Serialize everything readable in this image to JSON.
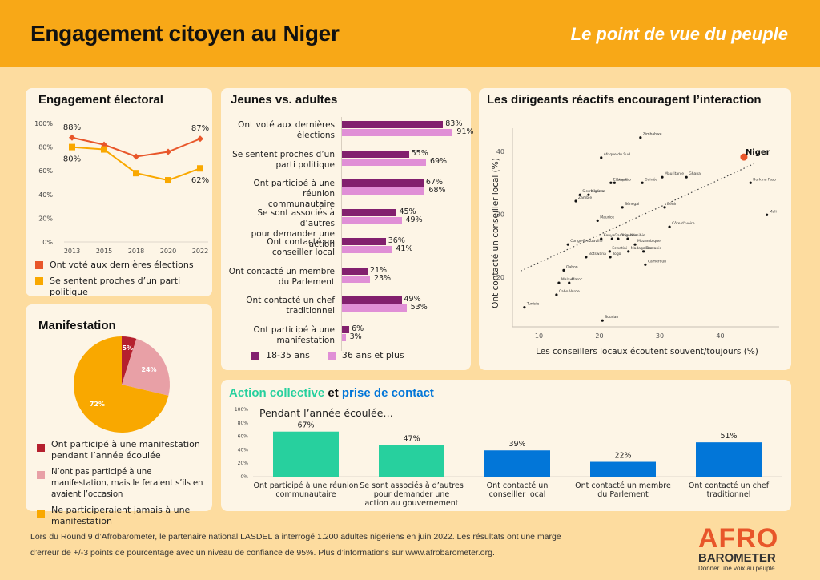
{
  "header": {
    "title": "Engagement citoyen au Niger",
    "subtitle": "Le point de vue du peuple"
  },
  "colors": {
    "header_bg": "#f8a817",
    "page_bg": "#fddc9f",
    "card_bg": "#fdf5e6",
    "orange_red": "#e8562a",
    "amber": "#f9a800",
    "dark_red": "#b5202e",
    "pink": "#e8a0a6",
    "purple": "#82206e",
    "light_purple": "#e08fd6",
    "teal": "#27d09e",
    "blue": "#0276d8"
  },
  "chart_data": [
    {
      "id": "electoral",
      "type": "line",
      "title": "Engagement électoral",
      "x": [
        "2013",
        "2015",
        "2018",
        "2020",
        "2022"
      ],
      "ylim": [
        0,
        100
      ],
      "yticks": [
        "0%",
        "20%",
        "40%",
        "60%",
        "80%",
        "100%"
      ],
      "series": [
        {
          "name": "Ont voté aux dernières élections",
          "values": [
            88,
            82,
            72,
            76,
            87
          ],
          "labels": [
            "88%",
            "",
            "",
            "",
            "87%"
          ],
          "color": "#e8562a",
          "marker": "diamond"
        },
        {
          "name": "Se sentent proches d’un parti politique",
          "values": [
            80,
            78,
            58,
            52,
            62
          ],
          "labels": [
            "80%",
            "",
            "",
            "",
            "62%"
          ],
          "color": "#f9a800",
          "marker": "square"
        }
      ],
      "legend": "bottom"
    },
    {
      "id": "manifestation",
      "type": "pie",
      "title": "Manifestation",
      "slices": [
        {
          "label": "Ont participé à une manifestation pendant l’année écoulée",
          "value": 5,
          "display": "5%",
          "color": "#b5202e"
        },
        {
          "label": "N’ont pas participé à une manifestation, mais le feraient s’ils en avaient l’occasion",
          "value": 24,
          "display": "24%",
          "color": "#e8a0a6"
        },
        {
          "label": "Ne participeraient jamais à une manifestation",
          "value": 72,
          "display": "72%",
          "color": "#f9a800"
        }
      ],
      "legend": "bottom"
    },
    {
      "id": "youth_adults",
      "type": "bar",
      "orientation": "horizontal",
      "title": "Jeunes vs. adultes",
      "categories": [
        "Ont voté aux dernières élections",
        "Se sentent proches d’un parti politique",
        "Ont participé à une réunion communautaire",
        "Se sont associés à d’autres pour demander une action",
        "Ont contacté un conseiller local",
        "Ont contacté un membre du Parlement",
        "Ont contacté un chef traditionnel",
        "Ont participé à une manifestation"
      ],
      "category_lines": [
        [
          "Ont voté aux dernières",
          "élections"
        ],
        [
          "Se sentent proches d’un",
          "parti politique"
        ],
        [
          "Ont participé à une réunion",
          "communautaire"
        ],
        [
          "Se sont associés à d’autres",
          "pour demander une action"
        ],
        [
          "Ont contacté un",
          "conseiller local"
        ],
        [
          "Ont contacté un membre",
          "du Parlement"
        ],
        [
          "Ont contacté un chef",
          "traditionnel"
        ],
        [
          "Ont participé à une",
          "manifestation"
        ]
      ],
      "series": [
        {
          "name": "18-35 ans",
          "values": [
            83,
            55,
            67,
            45,
            36,
            21,
            49,
            6
          ],
          "color": "#82206e"
        },
        {
          "name": "36 ans et plus",
          "values": [
            91,
            69,
            68,
            49,
            41,
            23,
            53,
            3
          ],
          "color": "#e08fd6"
        }
      ],
      "xlim": [
        0,
        100
      ],
      "legend": "bottom"
    },
    {
      "id": "leaders",
      "type": "scatter",
      "title": "Les dirigeants réactifs encouragent l’interaction",
      "xlabel": "Les conseillers locaux écoutent souvent/toujours (%)",
      "ylabel": "Ont contacté un conseiller local (%)",
      "xlim": [
        5,
        48
      ],
      "ylim": [
        12,
        44
      ],
      "xticks": [
        10,
        20,
        30,
        40
      ],
      "yticks": [
        20,
        30,
        40
      ],
      "trendline": {
        "x": [
          7,
          45.5
        ],
        "y": [
          21,
          38
        ]
      },
      "highlight": "Niger",
      "points": [
        {
          "label": "Zimbabwe",
          "x": 26.8,
          "y": 42.2
        },
        {
          "label": "Afrique du Sud",
          "x": 20.3,
          "y": 39.0
        },
        {
          "label": "Lesotho",
          "x": 22.5,
          "y": 35.0
        },
        {
          "label": "Ethiopie",
          "x": 21.9,
          "y": 35.0
        },
        {
          "label": "Guinée",
          "x": 27.1,
          "y": 35.0
        },
        {
          "label": "Mauritanie",
          "x": 30.4,
          "y": 35.9
        },
        {
          "label": "Ghana",
          "x": 34.4,
          "y": 35.9
        },
        {
          "label": "Niger",
          "x": 43.9,
          "y": 39.1
        },
        {
          "label": "Burkina Faso",
          "x": 45.0,
          "y": 35.0
        },
        {
          "label": "Sierra Leone",
          "x": 16.8,
          "y": 33.1
        },
        {
          "label": "Nigéria",
          "x": 18.2,
          "y": 33.1
        },
        {
          "label": "Zambie",
          "x": 16.1,
          "y": 32.1
        },
        {
          "label": "Sénégal",
          "x": 23.8,
          "y": 31.1
        },
        {
          "label": "Bénin",
          "x": 30.8,
          "y": 31.1
        },
        {
          "label": "Maurice",
          "x": 19.7,
          "y": 29.0
        },
        {
          "label": "Mali",
          "x": 47.7,
          "y": 29.9
        },
        {
          "label": "Côte d'Ivoire",
          "x": 31.6,
          "y": 28.0
        },
        {
          "label": "Kenya",
          "x": 20.3,
          "y": 26.1
        },
        {
          "label": "Gambie",
          "x": 22.1,
          "y": 26.1
        },
        {
          "label": "Ouganda",
          "x": 23.1,
          "y": 26.1
        },
        {
          "label": "Namibie",
          "x": 24.7,
          "y": 26.1
        },
        {
          "label": "Mozambique",
          "x": 25.9,
          "y": 25.2
        },
        {
          "label": "Congo-Brazzaville",
          "x": 14.8,
          "y": 25.2
        },
        {
          "label": "Eswatini",
          "x": 21.7,
          "y": 24.1
        },
        {
          "label": "Madagascar",
          "x": 24.8,
          "y": 24.1
        },
        {
          "label": "Tanzanie",
          "x": 27.3,
          "y": 24.1
        },
        {
          "label": "Togo",
          "x": 21.8,
          "y": 23.2
        },
        {
          "label": "Botswana",
          "x": 17.8,
          "y": 23.2
        },
        {
          "label": "Cameroun",
          "x": 27.6,
          "y": 22.0
        },
        {
          "label": "Gabon",
          "x": 14.1,
          "y": 21.1
        },
        {
          "label": "Malawi",
          "x": 13.3,
          "y": 19.1
        },
        {
          "label": "Maroc",
          "x": 15.0,
          "y": 19.1
        },
        {
          "label": "Cabo Verde",
          "x": 12.9,
          "y": 17.2
        },
        {
          "label": "Tunisie",
          "x": 7.6,
          "y": 15.2
        },
        {
          "label": "Soudan",
          "x": 20.5,
          "y": 13.1
        }
      ]
    },
    {
      "id": "collective",
      "type": "bar",
      "title_parts": [
        {
          "text": "Action collective",
          "color": "#27d09e"
        },
        {
          "text": " et ",
          "color": "#111111"
        },
        {
          "text": "prise de contact",
          "color": "#0276d8"
        }
      ],
      "subtitle": "Pendant l’année écoulée…",
      "categories": [
        "Ont participé à une réunion communautaire",
        "Se sont associés à d’autres pour demander une action au gouvernement",
        "Ont contacté un conseiller local",
        "Ont contacté un membre du Parlement",
        "Ont contacté un chef traditionnel"
      ],
      "category_lines": [
        [
          "Ont participé à une réunion",
          "communautaire"
        ],
        [
          "Se sont associés à d’autres",
          "pour demander une",
          "action au gouvernement"
        ],
        [
          "Ont contacté un",
          "conseiller local"
        ],
        [
          "Ont contacté un membre",
          "du Parlement"
        ],
        [
          "Ont contacté un chef",
          "traditionnel"
        ]
      ],
      "values": [
        67,
        47,
        39,
        22,
        51
      ],
      "labels": [
        "67%",
        "47%",
        "39%",
        "22%",
        "51%"
      ],
      "bar_colors": [
        "#27d09e",
        "#27d09e",
        "#0276d8",
        "#0276d8",
        "#0276d8"
      ],
      "ylim": [
        0,
        100
      ],
      "yticks": [
        "0%",
        "20%",
        "40%",
        "60%",
        "80%",
        "100%"
      ]
    }
  ],
  "footer": {
    "line1": "Lors du Round 9 d’Afrobarometer, le partenaire national LASDEL a interrogé 1.200 adultes nigériens en juin 2022. Les résultats ont une marge",
    "line2": "d’erreur de +/-3 points de pourcentage avec un niveau de confiance de 95%. Plus d’informations sur www.afrobarometer.org.",
    "logo_afro": "AFRO",
    "logo_barometer": "BAROMETER",
    "logo_tagline": "Donner une voix au peuple"
  }
}
